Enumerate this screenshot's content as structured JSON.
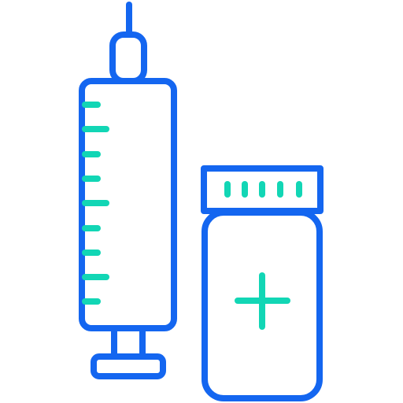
{
  "icon": {
    "name": "syringe-and-vial-icon",
    "colors": {
      "outline": "#1466f0",
      "accent": "#12d6b5",
      "background": "#ffffff"
    }
  }
}
